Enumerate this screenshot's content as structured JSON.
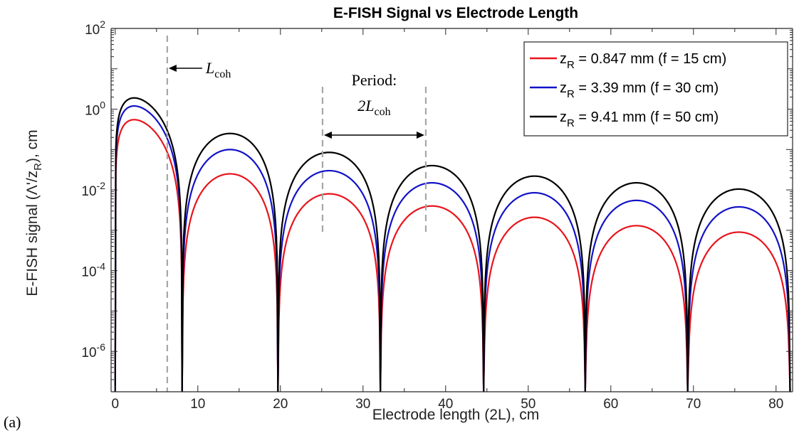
{
  "chart_data": {
    "type": "line",
    "title": "E-FISH Signal vs Electrode Length",
    "xlabel": "Electrode length (2L), cm",
    "ylabel": "E-FISH signal (Λ'/z_R), cm",
    "xlim": [
      -0.5,
      82
    ],
    "ylim": [
      1e-07,
      100
    ],
    "yscale": "log",
    "xticks": [
      "0",
      "10",
      "20",
      "30",
      "40",
      "50",
      "60",
      "70",
      "80"
    ],
    "yticks": [
      {
        "base": "10",
        "exp": "2"
      },
      {
        "base": "10",
        "exp": "0"
      },
      {
        "base": "10",
        "exp": "-2"
      },
      {
        "base": "10",
        "exp": "-4"
      },
      {
        "base": "10",
        "exp": "-6"
      }
    ],
    "legend_position": "top-right",
    "lcoh_cm": 6.3,
    "zeros_cm": [
      0,
      8.1,
      19.7,
      32.1,
      44.6,
      56.9,
      69.3,
      81.7
    ],
    "period_marks_cm": [
      25.1,
      37.6
    ],
    "series": [
      {
        "name": "z_R = 0.847 mm (f = 15 cm)",
        "sub_label": "R",
        "label_rest": " = 0.847 mm (f = 15 cm)",
        "color": "#e8141c",
        "peaks": [
          0.55,
          0.025,
          0.008,
          0.004,
          0.0021,
          0.0013,
          0.0009
        ]
      },
      {
        "name": "z_R = 3.39 mm (f = 30 cm)",
        "sub_label": "R",
        "label_rest": " = 3.39 mm   (f = 30 cm)",
        "color": "#1212c8",
        "peaks": [
          1.2,
          0.1,
          0.03,
          0.015,
          0.0085,
          0.0055,
          0.0038
        ]
      },
      {
        "name": "z_R = 9.41 mm (f = 50 cm)",
        "sub_label": "R",
        "label_rest": " = 9.41 mm   (f = 50 cm)",
        "color": "#000000",
        "peaks": [
          1.9,
          0.25,
          0.085,
          0.04,
          0.022,
          0.015,
          0.0105
        ]
      }
    ],
    "peak_x_cm": [
      2.3,
      13.0,
      25.1,
      37.6,
      50.3,
      62.8,
      75.5
    ],
    "annotations": {
      "lcoh_label": "L",
      "lcoh_sub": "coh",
      "period_text": "Period:",
      "period_value": "2L",
      "period_sub": "coh"
    },
    "panel_label": "(a)"
  }
}
